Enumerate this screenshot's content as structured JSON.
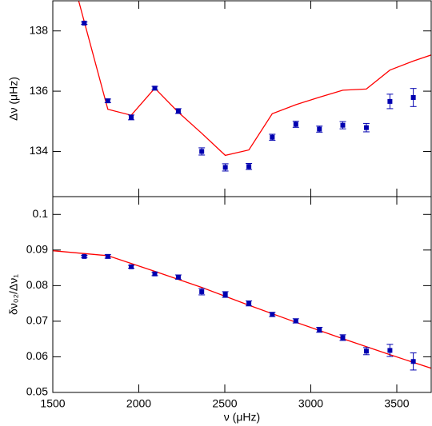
{
  "chart_data": [
    {
      "type": "errorbar",
      "ylabel": "Δν (μHz)",
      "xlim": [
        1500,
        3700
      ],
      "xticks": [
        1500,
        2000,
        2500,
        3000,
        3500
      ],
      "show_xtick_labels": false,
      "ylim": [
        132.5,
        139
      ],
      "yticks": [
        134,
        136,
        138
      ],
      "points": {
        "color": "#0000b0",
        "x": [
          1683,
          1820,
          1956,
          2093,
          2230,
          2366,
          2503,
          2640,
          2776,
          2913,
          3050,
          3186,
          3323,
          3460,
          3596
        ],
        "values": [
          138.26,
          135.68,
          135.13,
          136.1,
          135.34,
          134.0,
          133.47,
          133.5,
          134.47,
          134.9,
          134.74,
          134.87,
          134.79,
          135.66,
          135.79
        ],
        "errors": [
          0.04,
          0.06,
          0.08,
          0.06,
          0.08,
          0.12,
          0.12,
          0.1,
          0.1,
          0.1,
          0.1,
          0.12,
          0.14,
          0.24,
          0.3
        ]
      },
      "model": {
        "color": "#ff0000",
        "x": [
          1650,
          1820,
          1956,
          2093,
          2230,
          2366,
          2503,
          2640,
          2776,
          2913,
          3050,
          3186,
          3323,
          3460,
          3596,
          3700
        ],
        "values": [
          139.0,
          135.4,
          135.2,
          136.1,
          135.3,
          134.6,
          133.87,
          134.05,
          135.25,
          135.55,
          135.8,
          136.03,
          136.07,
          136.7,
          137.0,
          137.2
        ]
      }
    },
    {
      "type": "errorbar",
      "ylabel": "δν₀₂/Δν₁",
      "xlabel": "ν (μHz)",
      "xlim": [
        1500,
        3700
      ],
      "xticks": [
        1500,
        2000,
        2500,
        3000,
        3500
      ],
      "show_xtick_labels": true,
      "ylim": [
        0.05,
        0.105
      ],
      "yticks": [
        0.05,
        0.06,
        0.07,
        0.08,
        0.09,
        0.1
      ],
      "points": {
        "color": "#0000b0",
        "x": [
          1683,
          1820,
          1956,
          2093,
          2230,
          2366,
          2503,
          2640,
          2776,
          2913,
          3050,
          3186,
          3323,
          3460,
          3596
        ],
        "values": [
          0.0882,
          0.0882,
          0.0853,
          0.0833,
          0.0824,
          0.0783,
          0.0775,
          0.075,
          0.0719,
          0.0701,
          0.0676,
          0.0654,
          0.0616,
          0.0618,
          0.0587
        ],
        "errors": [
          0.0003,
          0.0005,
          0.0004,
          0.0005,
          0.0006,
          0.0009,
          0.0008,
          0.0007,
          0.0006,
          0.0006,
          0.0007,
          0.0008,
          0.001,
          0.0017,
          0.0024
        ]
      },
      "model": {
        "color": "#ff0000",
        "x": [
          1500,
          1820,
          2093,
          2366,
          2640,
          2913,
          3186,
          3460,
          3700
        ],
        "values": [
          0.0898,
          0.0884,
          0.084,
          0.0795,
          0.0745,
          0.0697,
          0.0651,
          0.0606,
          0.0568
        ]
      }
    }
  ]
}
